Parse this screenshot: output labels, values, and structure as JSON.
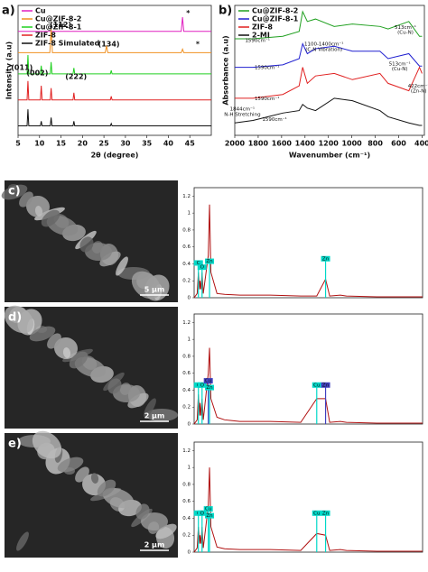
{
  "chart_data": [
    {
      "type": "line",
      "panel_label": "a)",
      "xlabel": "2θ (degree)",
      "ylabel": "Intensity (a.u)",
      "xlim": [
        5,
        50
      ],
      "xticks": [
        5,
        10,
        15,
        20,
        25,
        30,
        35,
        40,
        45
      ],
      "ylim": [
        0,
        110
      ],
      "legend": "upper left",
      "series": [
        {
          "name": "Cu",
          "color": "#e020c0",
          "x": [
            5,
            43.0,
            43.3,
            43.6,
            50
          ],
          "values": [
            88,
            88,
            100,
            88,
            88
          ]
        },
        {
          "name": "Cu@ZIF-8-2",
          "color": "#f09020",
          "x": [
            5,
            12.4,
            12.7,
            13.0,
            25.3,
            25.6,
            25.9,
            43.0,
            43.3,
            43.6,
            50
          ],
          "values": [
            70,
            70,
            90,
            70,
            70,
            76,
            70,
            70,
            73,
            70,
            70
          ]
        },
        {
          "name": "Cu@ZIF-8-1",
          "color": "#20d020",
          "x": [
            5,
            7.1,
            7.3,
            7.5,
            10.2,
            10.4,
            10.6,
            12.5,
            12.7,
            12.9,
            17.8,
            18.0,
            18.2,
            26.5,
            26.7,
            26.9,
            50
          ],
          "values": [
            52,
            52,
            68,
            52,
            52,
            59,
            52,
            52,
            62,
            52,
            52,
            57,
            52,
            52,
            55,
            52,
            52
          ]
        },
        {
          "name": "ZIF-8",
          "color": "#e02020",
          "x": [
            5,
            7.1,
            7.3,
            7.5,
            10.2,
            10.4,
            10.6,
            12.5,
            12.7,
            12.9,
            17.8,
            18.0,
            18.2,
            26.5,
            26.7,
            26.9,
            50
          ],
          "values": [
            30,
            30,
            46,
            30,
            30,
            42,
            30,
            30,
            40,
            30,
            30,
            36,
            30,
            30,
            33,
            30,
            30
          ]
        },
        {
          "name": "ZIF-8 Simulated",
          "color": "#111111",
          "x": [
            5,
            7.1,
            7.3,
            7.5,
            10.2,
            10.4,
            10.6,
            12.5,
            12.7,
            12.9,
            17.8,
            18.0,
            18.2,
            26.5,
            26.7,
            26.9,
            50
          ],
          "values": [
            8,
            8,
            22,
            8,
            8,
            12,
            8,
            8,
            15,
            8,
            8,
            12,
            8,
            8,
            10,
            8,
            8
          ]
        }
      ],
      "annotations": [
        "*",
        "(112)",
        "(134)",
        "*",
        "(011)",
        "(002)",
        "(222)"
      ]
    },
    {
      "type": "line",
      "panel_label": "b)",
      "xlabel": "Wavenumber (cm⁻¹)",
      "ylabel": "Absorbance (a.u)",
      "xlim": [
        2000,
        380
      ],
      "xticks": [
        2000,
        1800,
        1600,
        1400,
        1200,
        1000,
        800,
        600,
        400
      ],
      "ylim": [
        0,
        105
      ],
      "legend": "upper left",
      "series": [
        {
          "name": "Cu@ZIF-8-2",
          "color": "#20a020",
          "x": [
            2000,
            1844,
            1590,
            1450,
            1420,
            1380,
            1310,
            1150,
            995,
            760,
            690,
            513,
            422,
            400
          ],
          "values": [
            78,
            78,
            80,
            84,
            100,
            92,
            94,
            88,
            90,
            88,
            86,
            92,
            80,
            80
          ]
        },
        {
          "name": "Cu@ZIF-8-1",
          "color": "#2020d0",
          "x": [
            2000,
            1844,
            1590,
            1450,
            1420,
            1380,
            1310,
            1150,
            995,
            760,
            690,
            513,
            422,
            400
          ],
          "values": [
            55,
            55,
            57,
            62,
            74,
            66,
            70,
            72,
            68,
            68,
            62,
            66,
            56,
            56
          ]
        },
        {
          "name": "ZIF-8",
          "color": "#e02020",
          "x": [
            2000,
            1844,
            1590,
            1450,
            1420,
            1380,
            1310,
            1150,
            995,
            760,
            690,
            513,
            422,
            400
          ],
          "values": [
            30,
            30,
            33,
            40,
            55,
            42,
            48,
            50,
            45,
            50,
            42,
            36,
            55,
            50
          ]
        },
        {
          "name": "2-MI",
          "color": "#111111",
          "x": [
            2000,
            1844,
            1590,
            1450,
            1420,
            1380,
            1310,
            1150,
            995,
            760,
            690,
            513,
            422,
            400
          ],
          "values": [
            10,
            12,
            18,
            20,
            25,
            22,
            20,
            30,
            28,
            20,
            15,
            10,
            8,
            8
          ]
        }
      ],
      "annotations": [
        "1590cm⁻¹",
        "1100-1400cm⁻¹",
        "(C-N Vibration)",
        "513cm⁻¹",
        "(Cu-N)",
        "1590cm⁻¹",
        "513cm⁻¹",
        "(Cu-N)",
        "1590cm⁻¹",
        "422cm⁻¹",
        "(Zn-N)",
        "1844cm⁻¹",
        "N-H Stretching",
        "1590cm⁻¹"
      ]
    },
    {
      "type": "line",
      "xlim": [
        0,
        15
      ],
      "ylim": [
        0,
        1.3
      ],
      "yticks": [
        0,
        0.2,
        0.4,
        0.6,
        0.8,
        1,
        1.2
      ],
      "series": [
        {
          "color": "#b01010",
          "x": [
            0,
            0.2,
            0.28,
            0.36,
            0.39,
            0.45,
            0.52,
            0.6,
            0.93,
            1.01,
            1.1,
            1.5,
            2,
            3,
            5,
            7,
            8.05,
            8.63,
            8.9,
            9.6,
            10,
            12,
            15
          ],
          "values": [
            0,
            0.05,
            0.3,
            0.1,
            0.2,
            0.1,
            0.3,
            0.05,
            0.5,
            1.1,
            0.3,
            0.05,
            0.04,
            0.03,
            0.03,
            0.02,
            0.02,
            0.22,
            0.02,
            0.03,
            0.02,
            0.01,
            0.01
          ]
        }
      ],
      "peaks": [
        {
          "label": "C",
          "x": 0.28,
          "value": 0.4,
          "color": "#00d8c8"
        },
        {
          "label": "O",
          "x": 0.52,
          "value": 0.35,
          "color": "#00d8c8"
        },
        {
          "label": "Zn",
          "x": 1.01,
          "value": 0.42,
          "color": "#00d8c8"
        },
        {
          "label": "Zn",
          "x": 8.63,
          "value": 0.45,
          "color": "#00d8c8"
        }
      ]
    },
    {
      "type": "line",
      "xlim": [
        0,
        15
      ],
      "ylim": [
        0,
        1.3
      ],
      "yticks": [
        0,
        0.2,
        0.4,
        0.6,
        0.8,
        1,
        1.2
      ],
      "series": [
        {
          "color": "#b01010",
          "x": [
            0,
            0.2,
            0.28,
            0.36,
            0.39,
            0.45,
            0.52,
            0.6,
            0.93,
            1.01,
            1.1,
            1.5,
            2,
            3,
            5,
            7,
            8.05,
            8.63,
            8.9,
            9.6,
            10,
            12,
            15
          ],
          "values": [
            0,
            0.05,
            0.35,
            0.1,
            0.25,
            0.1,
            0.3,
            0.05,
            0.6,
            0.9,
            0.3,
            0.08,
            0.05,
            0.03,
            0.03,
            0.02,
            0.3,
            0.3,
            0.02,
            0.03,
            0.02,
            0.01,
            0.01
          ]
        }
      ],
      "peaks": [
        {
          "label": "C",
          "x": 0.28,
          "value": 0.45,
          "color": "#00d8c8"
        },
        {
          "label": "O",
          "x": 0.52,
          "value": 0.45,
          "color": "#00d8c8"
        },
        {
          "label": "Cu",
          "x": 0.93,
          "value": 0.5,
          "color": "#4040c0"
        },
        {
          "label": "Zn",
          "x": 1.01,
          "value": 0.42,
          "color": "#00d8c8"
        },
        {
          "label": "Cu",
          "x": 8.05,
          "value": 0.45,
          "color": "#00d8c8"
        },
        {
          "label": "Zn",
          "x": 8.63,
          "value": 0.45,
          "color": "#4040c0"
        }
      ]
    },
    {
      "type": "line",
      "xlim": [
        0,
        15
      ],
      "ylim": [
        0,
        1.3
      ],
      "yticks": [
        0,
        0.2,
        0.4,
        0.6,
        0.8,
        1,
        1.2
      ],
      "series": [
        {
          "color": "#b01010",
          "x": [
            0,
            0.2,
            0.28,
            0.36,
            0.39,
            0.45,
            0.52,
            0.6,
            0.93,
            1.01,
            1.1,
            1.5,
            2,
            3,
            5,
            7,
            8.05,
            8.63,
            8.9,
            9.6,
            10,
            12,
            15
          ],
          "values": [
            0,
            0.05,
            0.3,
            0.1,
            0.2,
            0.1,
            0.3,
            0.05,
            0.55,
            1.0,
            0.3,
            0.06,
            0.04,
            0.03,
            0.03,
            0.02,
            0.22,
            0.2,
            0.02,
            0.03,
            0.02,
            0.01,
            0.01
          ]
        }
      ],
      "peaks": [
        {
          "label": "C",
          "x": 0.28,
          "value": 0.45,
          "color": "#00d8c8"
        },
        {
          "label": "O",
          "x": 0.52,
          "value": 0.45,
          "color": "#00d8c8"
        },
        {
          "label": "Cu",
          "x": 0.93,
          "value": 0.5,
          "color": "#00d8c8"
        },
        {
          "label": "Zn",
          "x": 1.01,
          "value": 0.42,
          "color": "#00d8c8"
        },
        {
          "label": "Cu",
          "x": 8.05,
          "value": 0.45,
          "color": "#00d8c8"
        },
        {
          "label": "Zn",
          "x": 8.63,
          "value": 0.45,
          "color": "#00d8c8"
        }
      ]
    }
  ],
  "images": [
    {
      "panel_label": "c)",
      "scale_bar": "5 µm"
    },
    {
      "panel_label": "d)",
      "scale_bar": "2 µm"
    },
    {
      "panel_label": "e)",
      "scale_bar": "2 µm"
    }
  ]
}
